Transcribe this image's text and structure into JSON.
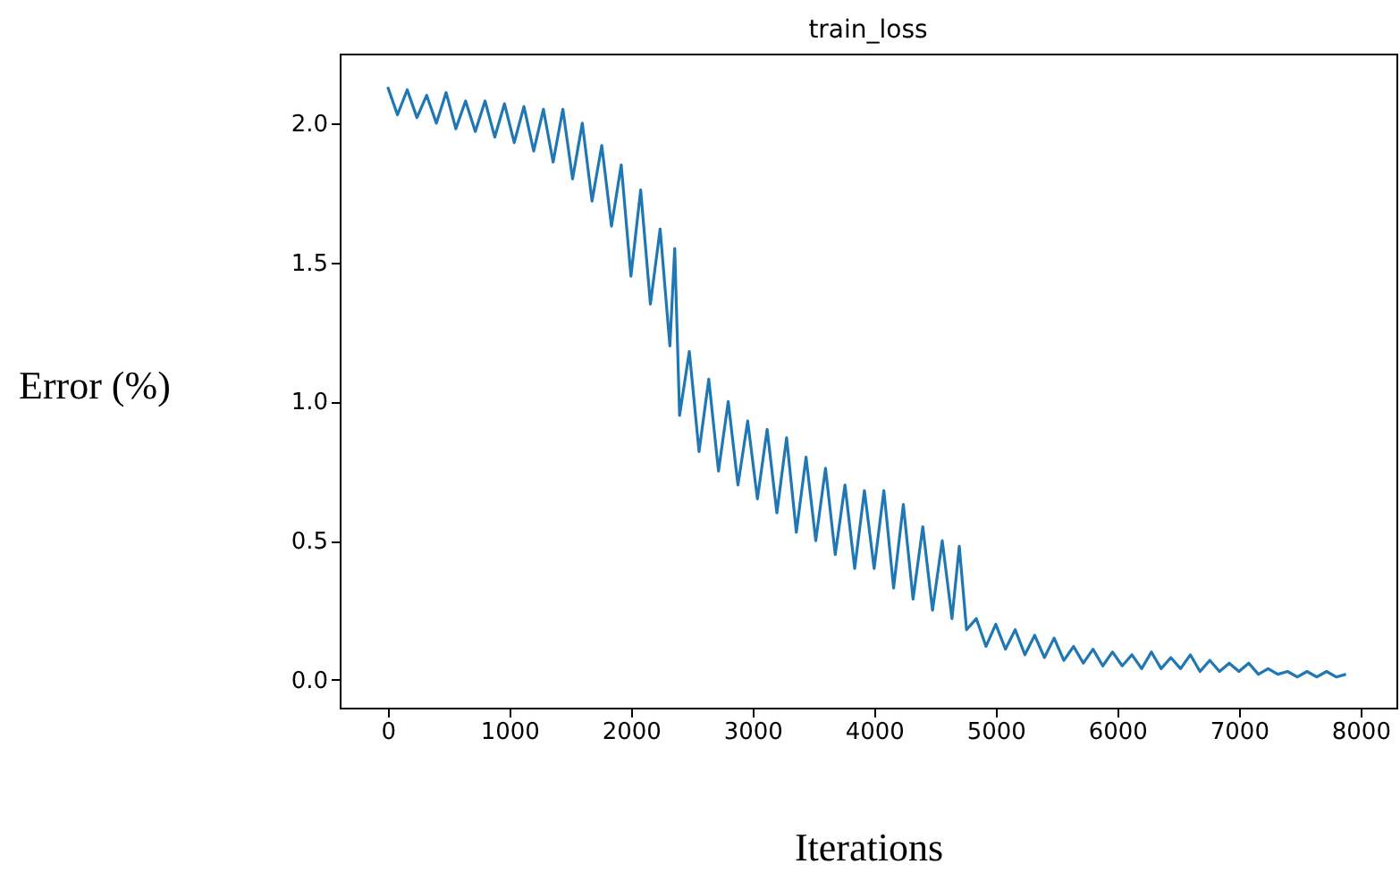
{
  "chart_data": {
    "type": "line",
    "title": "train_loss",
    "xlabel": "Iterations",
    "ylabel": "Error (%)",
    "xlim": [
      -395,
      8295
    ],
    "ylim": [
      -0.1,
      2.25
    ],
    "xticks": [
      0,
      1000,
      2000,
      3000,
      4000,
      5000,
      6000,
      7000,
      8000
    ],
    "yticks": [
      {
        "value": 0,
        "label": "0.0"
      },
      {
        "value": 0.5,
        "label": "0.5"
      },
      {
        "value": 1,
        "label": "1.0"
      },
      {
        "value": 1.5,
        "label": "1.5"
      },
      {
        "value": 2,
        "label": "2.0"
      }
    ],
    "grid": false,
    "x": [
      0,
      80,
      160,
      240,
      320,
      400,
      480,
      560,
      640,
      720,
      800,
      880,
      960,
      1040,
      1120,
      1200,
      1280,
      1360,
      1440,
      1520,
      1600,
      1680,
      1760,
      1840,
      1920,
      2000,
      2080,
      2160,
      2240,
      2320,
      2360,
      2400,
      2480,
      2560,
      2640,
      2720,
      2800,
      2880,
      2960,
      3040,
      3120,
      3200,
      3280,
      3360,
      3440,
      3520,
      3600,
      3680,
      3760,
      3840,
      3920,
      4000,
      4080,
      4160,
      4240,
      4320,
      4400,
      4480,
      4560,
      4640,
      4700,
      4760,
      4840,
      4920,
      5000,
      5080,
      5160,
      5240,
      5320,
      5400,
      5480,
      5560,
      5640,
      5720,
      5800,
      5880,
      5960,
      6040,
      6120,
      6200,
      6280,
      6360,
      6440,
      6520,
      6600,
      6680,
      6760,
      6840,
      6920,
      7000,
      7080,
      7160,
      7240,
      7320,
      7400,
      7480,
      7560,
      7640,
      7720,
      7800,
      7880
    ],
    "series": [
      {
        "color": "#1f77b4",
        "values": [
          2.13,
          2.03,
          2.12,
          2.02,
          2.1,
          2.0,
          2.11,
          1.98,
          2.08,
          1.97,
          2.08,
          1.95,
          2.07,
          1.93,
          2.06,
          1.9,
          2.05,
          1.86,
          2.05,
          1.8,
          2.0,
          1.72,
          1.92,
          1.63,
          1.85,
          1.45,
          1.76,
          1.35,
          1.62,
          1.2,
          1.55,
          0.95,
          1.18,
          0.82,
          1.08,
          0.75,
          1.0,
          0.7,
          0.93,
          0.65,
          0.9,
          0.6,
          0.87,
          0.53,
          0.8,
          0.5,
          0.76,
          0.45,
          0.7,
          0.4,
          0.68,
          0.4,
          0.68,
          0.33,
          0.63,
          0.29,
          0.55,
          0.25,
          0.5,
          0.22,
          0.48,
          0.18,
          0.22,
          0.12,
          0.2,
          0.11,
          0.18,
          0.09,
          0.16,
          0.08,
          0.15,
          0.07,
          0.12,
          0.06,
          0.11,
          0.05,
          0.1,
          0.05,
          0.09,
          0.04,
          0.1,
          0.04,
          0.08,
          0.04,
          0.09,
          0.03,
          0.07,
          0.03,
          0.06,
          0.03,
          0.06,
          0.02,
          0.04,
          0.02,
          0.03,
          0.01,
          0.03,
          0.01,
          0.03,
          0.01,
          0.02
        ]
      }
    ]
  }
}
